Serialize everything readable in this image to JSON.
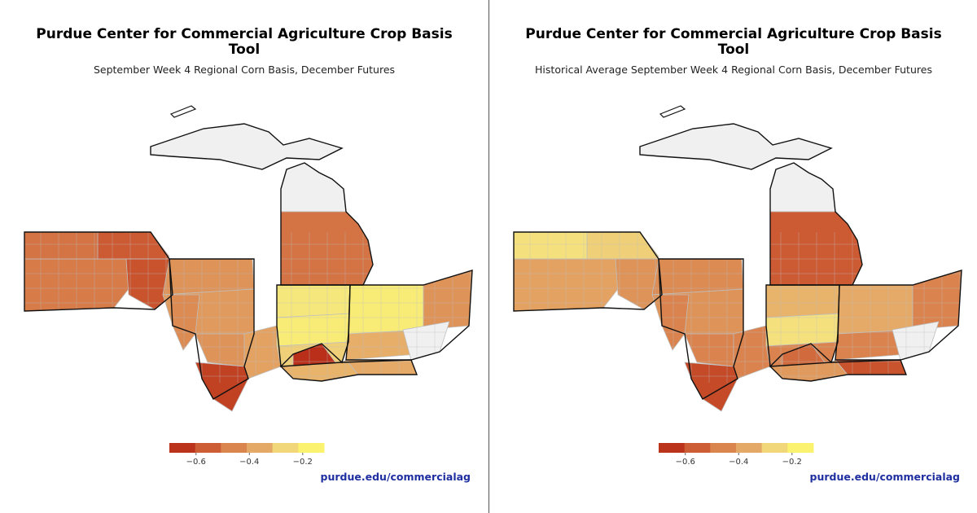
{
  "panels": [
    {
      "title_line1": "Purdue Center for Commercial Agriculture Crop Basis",
      "title_line2": "Tool",
      "subtitle": "September Week 4 Regional Corn Basis, December Futures",
      "credit": "purdue.edu/commercialag",
      "legend": {
        "ticks": [
          "−0.6",
          "−0.4",
          "−0.2"
        ],
        "tick_values": [
          -0.6,
          -0.4,
          -0.2
        ],
        "range": [
          -0.7,
          -0.12
        ]
      },
      "regions": {
        "michigan_upper": "no-data",
        "michigan_north_lower": "no-data",
        "michigan_south_lower": -0.5,
        "iowa_north": -0.5,
        "iowa_northeast": -0.56,
        "iowa_south": -0.48,
        "iowa_southeast": -0.58,
        "illinois_north": -0.42,
        "illinois_central": -0.4,
        "illinois_south": -0.38,
        "missouri_north": -0.44,
        "missouri_central": -0.42,
        "missouri_bootheel": -0.62,
        "indiana_north": -0.22,
        "indiana_central": -0.2,
        "indiana_south": -0.28,
        "indiana_southwest": -0.66,
        "ohio_west": -0.2,
        "ohio_central": -0.35,
        "ohio_east": -0.42,
        "ohio_southeast": "no-data",
        "kentucky_west": -0.34,
        "kentucky_east": -0.36
      }
    },
    {
      "title_line1": "Purdue Center for Commercial Agriculture Crop Basis",
      "title_line2": "Tool",
      "subtitle": "Historical Average September Week 4 Regional Corn Basis, December Futures",
      "credit": "purdue.edu/commercialag",
      "legend": {
        "ticks": [
          "−0.6",
          "−0.4",
          "−0.2"
        ],
        "tick_values": [
          -0.6,
          -0.4,
          -0.2
        ],
        "range": [
          -0.7,
          -0.12
        ]
      },
      "regions": {
        "michigan_upper": "no-data",
        "michigan_north_lower": "no-data",
        "michigan_south_lower": -0.56,
        "iowa_north": -0.24,
        "iowa_northeast": -0.28,
        "iowa_south": -0.38,
        "iowa_southeast": -0.42,
        "illinois_north": -0.44,
        "illinois_central": -0.42,
        "illinois_south": -0.46,
        "missouri_north": -0.46,
        "missouri_central": -0.46,
        "missouri_bootheel": -0.6,
        "indiana_north": -0.34,
        "indiana_central": -0.24,
        "indiana_south": -0.46,
        "indiana_southwest": -0.52,
        "ohio_west": -0.36,
        "ohio_central": -0.46,
        "ohio_east": -0.46,
        "ohio_southeast": "no-data",
        "kentucky_west": -0.4,
        "kentucky_east": -0.58
      }
    }
  ],
  "colors": {
    "scale_stops": [
      "#b31d0f",
      "#c8512c",
      "#d9804c",
      "#e6ad69",
      "#f5e37f",
      "#ffff66"
    ],
    "no_data": "#f0f0f0",
    "state_border": "#111111",
    "county_border": "#bfbfbf",
    "credit_text": "#1f2fa0"
  }
}
